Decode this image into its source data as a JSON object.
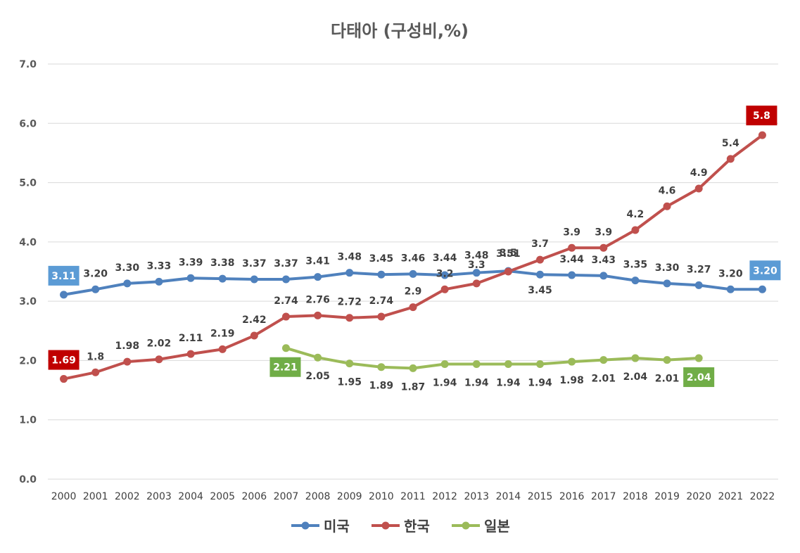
{
  "chart_data": {
    "type": "line",
    "title": "다태아 (구성비,%)",
    "xlabel": "",
    "ylabel": "",
    "ylim": [
      0,
      7
    ],
    "yticks": [
      "0.0",
      "1.0",
      "2.0",
      "3.0",
      "4.0",
      "5.0",
      "6.0",
      "7.0"
    ],
    "grid": true,
    "legend_position": "bottom",
    "categories": [
      "2000",
      "2001",
      "2002",
      "2003",
      "2004",
      "2005",
      "2006",
      "2007",
      "2008",
      "2009",
      "2010",
      "2011",
      "2012",
      "2013",
      "2014",
      "2015",
      "2016",
      "2017",
      "2018",
      "2019",
      "2020",
      "2021",
      "2022"
    ],
    "series": [
      {
        "name": "미국",
        "color": "#4f81bd",
        "values": [
          3.11,
          3.2,
          3.3,
          3.33,
          3.39,
          3.38,
          3.37,
          3.37,
          3.41,
          3.48,
          3.45,
          3.46,
          3.44,
          3.48,
          3.51,
          3.45,
          3.44,
          3.43,
          3.35,
          3.3,
          3.27,
          3.2,
          3.2
        ],
        "labels": [
          "3.11",
          "3.20",
          "3.30",
          "3.33",
          "3.39",
          "3.38",
          "3.37",
          "3.37",
          "3.41",
          "3.48",
          "3.45",
          "3.46",
          "3.44",
          "3.48",
          "3.51",
          "3.45",
          "3.44",
          "3.43",
          "3.35",
          "3.30",
          "3.27",
          "3.20",
          "3.20"
        ]
      },
      {
        "name": "한국",
        "color": "#c0504d",
        "values": [
          1.69,
          1.8,
          1.98,
          2.02,
          2.11,
          2.19,
          2.42,
          2.74,
          2.76,
          2.72,
          2.74,
          2.9,
          3.2,
          3.3,
          3.5,
          3.7,
          3.9,
          3.9,
          4.2,
          4.6,
          4.9,
          5.4,
          5.8
        ],
        "labels": [
          "1.69",
          "1.8",
          "1.98",
          "2.02",
          "2.11",
          "2.19",
          "2.42",
          "2.74",
          "2.76",
          "2.72",
          "2.74",
          "2.9",
          "3.2",
          "3.3",
          "3.5",
          "3.7",
          "3.9",
          "3.9",
          "4.2",
          "4.6",
          "4.9",
          "5.4",
          "5.8"
        ]
      },
      {
        "name": "일본",
        "color": "#9bbb59",
        "values": [
          null,
          null,
          null,
          null,
          null,
          null,
          null,
          2.21,
          2.05,
          1.95,
          1.89,
          1.87,
          1.94,
          1.94,
          1.94,
          1.94,
          1.98,
          2.01,
          2.04,
          2.01,
          2.04,
          null,
          null
        ],
        "labels": [
          null,
          null,
          null,
          null,
          null,
          null,
          null,
          "2.21",
          "2.05",
          "1.95",
          "1.89",
          "1.87",
          "1.94",
          "1.94",
          "1.94",
          "1.94",
          "1.98",
          "2.01",
          "2.04",
          "2.01",
          "2.04",
          null,
          null
        ]
      }
    ],
    "highlight_label_colors": {
      "미국": "#5b9bd5",
      "한국": "#c00000",
      "일본": "#70ad47"
    }
  }
}
